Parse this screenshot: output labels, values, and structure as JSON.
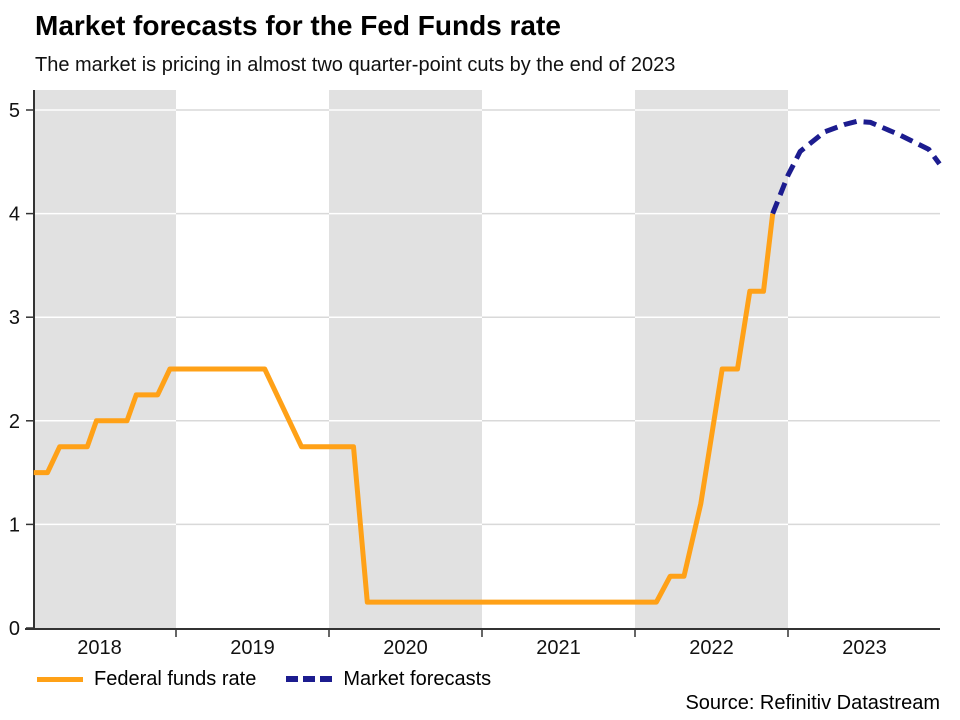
{
  "header": {
    "title": "Market forecasts for the Fed Funds rate",
    "subtitle": "The market is pricing in almost two quarter-point cuts by the end of 2023"
  },
  "source": "Source: Refinitiv Datastream",
  "legend": [
    {
      "label": "Federal funds rate",
      "style": "solid",
      "color": "#FFA117"
    },
    {
      "label": "Market forecasts",
      "style": "dashed",
      "color": "#1C1C8F"
    }
  ],
  "colors": {
    "band": "#E1E1E1",
    "grid": "#D9D9D9",
    "grid_over_band": "#FFFFFF",
    "axis": "#333333",
    "label": "#111111"
  },
  "chart_data": {
    "type": "line",
    "title": "Market forecasts for the Fed Funds rate",
    "subtitle": "The market is pricing in almost two quarter-point cuts by the end of 2023",
    "xlabel": "",
    "ylabel": "",
    "xlim": [
      2018.07,
      2024.0
    ],
    "ylim": [
      0,
      5.19
    ],
    "grid": true,
    "legend_position": "bottom-left",
    "y_ticks": [
      0,
      1,
      2,
      3,
      4,
      5
    ],
    "x_tick_marks": [
      2019,
      2020,
      2021,
      2022,
      2023
    ],
    "x_tick_labels": [
      {
        "label": "2018",
        "center": 2018.5
      },
      {
        "label": "2019",
        "center": 2019.5
      },
      {
        "label": "2020",
        "center": 2020.5
      },
      {
        "label": "2021",
        "center": 2021.5
      },
      {
        "label": "2022",
        "center": 2022.5
      },
      {
        "label": "2023",
        "center": 2023.5
      }
    ],
    "shaded_year_bands": [
      [
        2018,
        2019
      ],
      [
        2020,
        2021
      ],
      [
        2022,
        2023
      ]
    ],
    "series": [
      {
        "name": "Federal funds rate",
        "color": "#FFA117",
        "style": "solid",
        "points": [
          [
            2018.07,
            1.5
          ],
          [
            2018.16,
            1.5
          ],
          [
            2018.24,
            1.75
          ],
          [
            2018.42,
            1.75
          ],
          [
            2018.48,
            2.0
          ],
          [
            2018.68,
            2.0
          ],
          [
            2018.74,
            2.25
          ],
          [
            2018.88,
            2.25
          ],
          [
            2018.96,
            2.5
          ],
          [
            2019.58,
            2.5
          ],
          [
            2019.82,
            1.75
          ],
          [
            2020.16,
            1.75
          ],
          [
            2020.25,
            0.25
          ],
          [
            2022.14,
            0.25
          ],
          [
            2022.23,
            0.5
          ],
          [
            2022.32,
            0.5
          ],
          [
            2022.43,
            1.2
          ],
          [
            2022.57,
            2.5
          ],
          [
            2022.67,
            2.5
          ],
          [
            2022.75,
            3.25
          ],
          [
            2022.84,
            3.25
          ],
          [
            2022.9,
            4.0
          ]
        ]
      },
      {
        "name": "Market forecasts",
        "color": "#1C1C8F",
        "style": "dashed",
        "dash": [
          13,
          7
        ],
        "points": [
          [
            2022.9,
            4.0
          ],
          [
            2023.0,
            4.37
          ],
          [
            2023.08,
            4.6
          ],
          [
            2023.24,
            4.79
          ],
          [
            2023.37,
            4.86
          ],
          [
            2023.45,
            4.89
          ],
          [
            2023.54,
            4.88
          ],
          [
            2023.73,
            4.76
          ],
          [
            2023.92,
            4.62
          ],
          [
            2023.99,
            4.48
          ]
        ]
      }
    ]
  }
}
